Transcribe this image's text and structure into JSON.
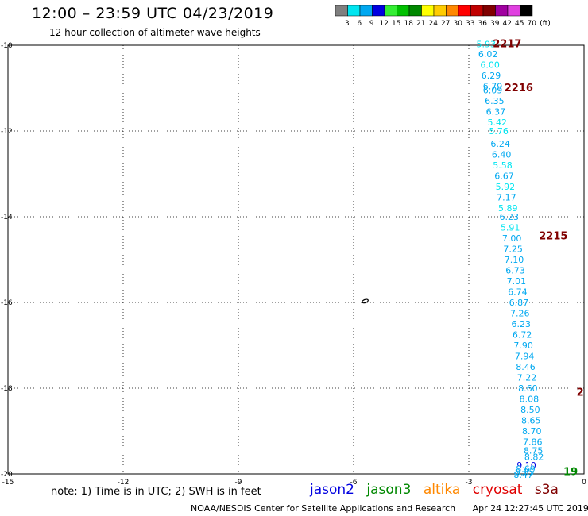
{
  "header": {
    "title": "12:00 – 23:59 UTC 04/23/2019",
    "subtitle": "12 hour collection of altimeter wave heights"
  },
  "colorbar": {
    "unit": "(ft)",
    "bins": [
      {
        "label": "3",
        "color": "#7f7f7f"
      },
      {
        "label": "6",
        "color": "#00e5f0"
      },
      {
        "label": "9",
        "color": "#00a8f0"
      },
      {
        "label": "12",
        "color": "#0000e0"
      },
      {
        "label": "15",
        "color": "#33ee33"
      },
      {
        "label": "18",
        "color": "#00c000"
      },
      {
        "label": "21",
        "color": "#008800"
      },
      {
        "label": "24",
        "color": "#ffff00"
      },
      {
        "label": "27",
        "color": "#ffcc00"
      },
      {
        "label": "30",
        "color": "#ff8800"
      },
      {
        "label": "33",
        "color": "#ff0000"
      },
      {
        "label": "36",
        "color": "#c00000"
      },
      {
        "label": "39",
        "color": "#800000"
      },
      {
        "label": "42",
        "color": "#a000a0"
      },
      {
        "label": "45",
        "color": "#e040e0"
      },
      {
        "label": "70",
        "color": "#000000"
      }
    ]
  },
  "chart_data": {
    "type": "scatter",
    "xlim": [
      -15,
      0
    ],
    "ylim": [
      -20,
      -10
    ],
    "xticks": [
      "-15",
      "-12",
      "-9",
      "-6",
      "-3",
      "0"
    ],
    "yticks": [
      "-10",
      "-12",
      "-14",
      "-16",
      "-18",
      "-20"
    ],
    "grid": true,
    "island_marker": {
      "lon": -5.7,
      "lat": -15.97
    },
    "track_points": [
      {
        "lon": -2.55,
        "lat": -9.97,
        "swh": "5.93"
      },
      {
        "lon": -2.5,
        "lat": -10.2,
        "swh": "6.02"
      },
      {
        "lon": -2.45,
        "lat": -10.45,
        "swh": "6.00"
      },
      {
        "lon": -2.42,
        "lat": -10.7,
        "swh": "6.29"
      },
      {
        "lon": -2.38,
        "lat": -10.95,
        "swh": "6.79"
      },
      {
        "lon": -2.38,
        "lat": -11.05,
        "swh": "6.09"
      },
      {
        "lon": -2.33,
        "lat": -11.3,
        "swh": "6.35"
      },
      {
        "lon": -2.3,
        "lat": -11.55,
        "swh": "6.37"
      },
      {
        "lon": -2.26,
        "lat": -11.8,
        "swh": "5.42"
      },
      {
        "lon": -2.22,
        "lat": -12.0,
        "swh": "5.76"
      },
      {
        "lon": -2.18,
        "lat": -12.3,
        "swh": "6.24"
      },
      {
        "lon": -2.15,
        "lat": -12.55,
        "swh": "6.40"
      },
      {
        "lon": -2.12,
        "lat": -12.8,
        "swh": "5.58"
      },
      {
        "lon": -2.08,
        "lat": -13.05,
        "swh": "6.67"
      },
      {
        "lon": -2.05,
        "lat": -13.3,
        "swh": "5.92"
      },
      {
        "lon": -2.02,
        "lat": -13.55,
        "swh": "7.17"
      },
      {
        "lon": -1.98,
        "lat": -13.8,
        "swh": "5.89"
      },
      {
        "lon": -1.95,
        "lat": -14.0,
        "swh": "6.23"
      },
      {
        "lon": -1.92,
        "lat": -14.25,
        "swh": "5.91"
      },
      {
        "lon": -1.88,
        "lat": -14.5,
        "swh": "7.00"
      },
      {
        "lon": -1.85,
        "lat": -14.75,
        "swh": "7.25"
      },
      {
        "lon": -1.82,
        "lat": -15.0,
        "swh": "7.10"
      },
      {
        "lon": -1.79,
        "lat": -15.25,
        "swh": "6.73"
      },
      {
        "lon": -1.76,
        "lat": -15.5,
        "swh": "7.01"
      },
      {
        "lon": -1.73,
        "lat": -15.75,
        "swh": "6.74"
      },
      {
        "lon": -1.7,
        "lat": -16.0,
        "swh": "6.87"
      },
      {
        "lon": -1.67,
        "lat": -16.25,
        "swh": "7.26"
      },
      {
        "lon": -1.64,
        "lat": -16.5,
        "swh": "6.23"
      },
      {
        "lon": -1.61,
        "lat": -16.75,
        "swh": "6.72"
      },
      {
        "lon": -1.58,
        "lat": -17.0,
        "swh": "7.90"
      },
      {
        "lon": -1.55,
        "lat": -17.25,
        "swh": "7.94"
      },
      {
        "lon": -1.52,
        "lat": -17.5,
        "swh": "8.46"
      },
      {
        "lon": -1.49,
        "lat": -17.75,
        "swh": "7.22"
      },
      {
        "lon": -1.46,
        "lat": -18.0,
        "swh": "8.60"
      },
      {
        "lon": -1.43,
        "lat": -18.25,
        "swh": "8.08"
      },
      {
        "lon": -1.4,
        "lat": -18.5,
        "swh": "8.50"
      },
      {
        "lon": -1.38,
        "lat": -18.75,
        "swh": "8.65"
      },
      {
        "lon": -1.36,
        "lat": -19.0,
        "swh": "8.70"
      },
      {
        "lon": -1.34,
        "lat": -19.25,
        "swh": "7.86"
      },
      {
        "lon": -1.32,
        "lat": -19.45,
        "swh": "8.75"
      },
      {
        "lon": -1.3,
        "lat": -19.6,
        "swh": "8.82"
      },
      {
        "lon": -1.5,
        "lat": -19.8,
        "swh": "9.10"
      },
      {
        "lon": -1.52,
        "lat": -19.88,
        "swh": "8.69"
      },
      {
        "lon": -1.55,
        "lat": -19.95,
        "swh": "8.85"
      },
      {
        "lon": -1.58,
        "lat": -20.02,
        "swh": "8.47"
      }
    ],
    "time_labels": [
      {
        "lon": -2.0,
        "lat": -9.97,
        "text": "2217"
      },
      {
        "lon": -1.7,
        "lat": -11.0,
        "text": "2216"
      },
      {
        "lon": -0.8,
        "lat": -14.45,
        "text": "2215"
      },
      {
        "lon": -0.1,
        "lat": -18.1,
        "text": "2"
      },
      {
        "lon": -0.35,
        "lat": -19.95,
        "text": "19"
      }
    ]
  },
  "note_text": "note:  1)  Time is in UTC;  2)  SWH is in feet",
  "satellites": [
    {
      "name": "jason2",
      "color": "#0000e0"
    },
    {
      "name": "jason3",
      "color": "#008800"
    },
    {
      "name": "altika",
      "color": "#ff8800"
    },
    {
      "name": "cryosat",
      "color": "#e00000"
    },
    {
      "name": "s3a",
      "color": "#800000"
    }
  ],
  "footer": {
    "credit": "NOAA/NESDIS Center for Satellite Applications and Research",
    "timestamp": "Apr 24 12:27:45 UTC 2019"
  }
}
